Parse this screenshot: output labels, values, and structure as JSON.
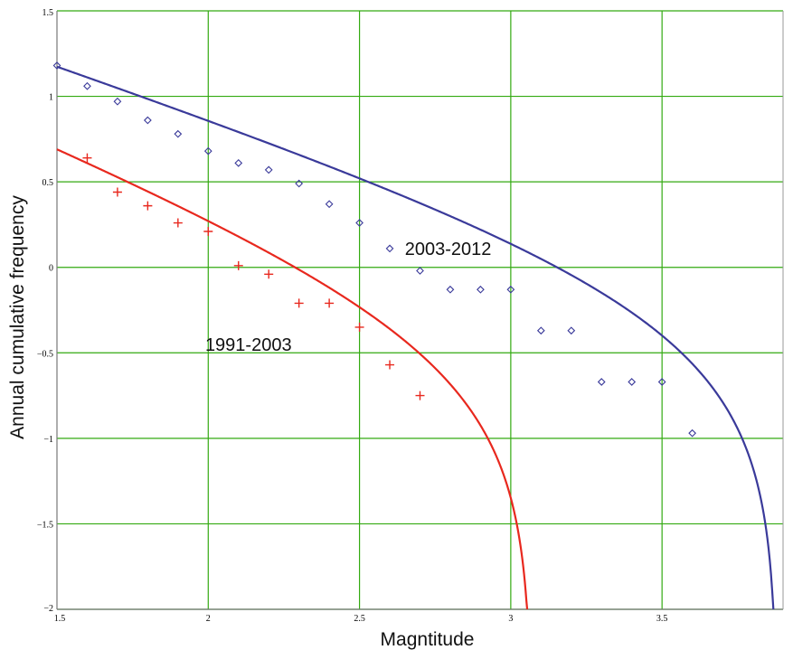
{
  "chart_data": {
    "type": "scatter",
    "title": "",
    "xlabel": "Magntitude",
    "ylabel": "Annual cumulative frequency",
    "xlim": [
      1.5,
      3.9
    ],
    "ylim": [
      -2,
      1.5
    ],
    "xticks": [
      1.5,
      2,
      2.5,
      3,
      3.5
    ],
    "xtick_labels": [
      "1.5",
      "2",
      "2.5",
      "3",
      "3.5"
    ],
    "yticks": [
      -2,
      -1.5,
      -1,
      -0.5,
      0,
      0.5,
      1,
      1.5
    ],
    "ytick_labels": [
      "−2",
      "−1.5",
      "−1",
      "−0.5",
      "0",
      "0.5",
      "1",
      "1.5"
    ],
    "grid": true,
    "grid_color": "#33aa11",
    "series": [
      {
        "name": "2003-2012",
        "color": "#3a3a9a",
        "marker": "diamond",
        "points": [
          [
            1.5,
            1.18
          ],
          [
            1.6,
            1.06
          ],
          [
            1.7,
            0.97
          ],
          [
            1.8,
            0.86
          ],
          [
            1.9,
            0.78
          ],
          [
            2.0,
            0.68
          ],
          [
            2.1,
            0.61
          ],
          [
            2.2,
            0.57
          ],
          [
            2.3,
            0.49
          ],
          [
            2.4,
            0.37
          ],
          [
            2.5,
            0.26
          ],
          [
            2.6,
            0.11
          ],
          [
            2.7,
            -0.02
          ],
          [
            2.8,
            -0.13
          ],
          [
            2.9,
            -0.13
          ],
          [
            3.0,
            -0.13
          ],
          [
            3.1,
            -0.37
          ],
          [
            3.2,
            -0.37
          ],
          [
            3.3,
            -0.67
          ],
          [
            3.4,
            -0.67
          ],
          [
            3.5,
            -0.67
          ],
          [
            3.6,
            -0.97
          ]
        ],
        "fit": {
          "a": 1.19,
          "b": 0.6,
          "mmax": 3.88
        }
      },
      {
        "name": "1991-2003",
        "color": "#e8281e",
        "marker": "plus",
        "points": [
          [
            1.6,
            0.64
          ],
          [
            1.7,
            0.44
          ],
          [
            1.8,
            0.36
          ],
          [
            1.9,
            0.26
          ],
          [
            2.0,
            0.21
          ],
          [
            2.1,
            0.01
          ],
          [
            2.2,
            -0.04
          ],
          [
            2.3,
            -0.21
          ],
          [
            2.4,
            -0.21
          ],
          [
            2.5,
            -0.35
          ],
          [
            2.6,
            -0.57
          ],
          [
            2.7,
            -0.75
          ]
        ],
        "fit": {
          "a": 0.72,
          "b": 0.75,
          "mmax": 3.07
        }
      }
    ],
    "annotations": [
      {
        "text": "2003-2012",
        "x": 2.65,
        "y": 0.11
      },
      {
        "text": "1991-2003",
        "x": 1.99,
        "y": -0.45
      }
    ]
  }
}
